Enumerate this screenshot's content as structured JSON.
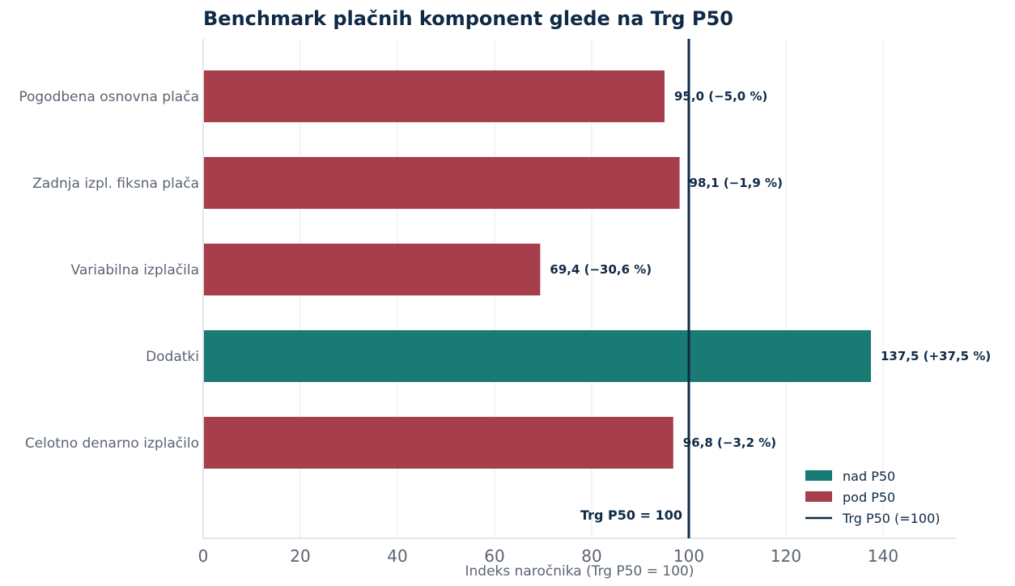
{
  "chart_data": {
    "type": "bar",
    "orientation": "horizontal",
    "title": "Benchmark plačnih komponent glede na Trg P50",
    "xlabel": "Indeks naročnika (Trg P50 = 100)",
    "ylabel": "",
    "xlim": [
      0,
      155
    ],
    "x_ticks": [
      0,
      20,
      40,
      60,
      80,
      100,
      120,
      140
    ],
    "categories": [
      "Pogodbena osnovna plača",
      "Zadnja izpl. fiksna plača",
      "Variabilna izplačila",
      "Dodatki",
      "Celotno denarno izplačilo"
    ],
    "values": [
      95.0,
      98.1,
      69.4,
      137.5,
      96.8
    ],
    "value_labels": [
      "95,0   (−5,0 %)",
      "98,1   (−1,9 %)",
      "69,4   (−30,6 %)",
      "137,5   (+37,5 %)",
      "96,8   (−3,2 %)"
    ],
    "status": [
      "pod",
      "pod",
      "pod",
      "nad",
      "pod"
    ],
    "reference_line": {
      "value": 100,
      "label": "Trg P50 = 100"
    },
    "legend": {
      "placement": "bottom-right",
      "items": [
        {
          "key": "nad",
          "label": "nad P50",
          "kind": "patch"
        },
        {
          "key": "pod",
          "label": "pod P50",
          "kind": "patch"
        },
        {
          "key": "ref",
          "label": "Trg P50 (=100)",
          "kind": "line"
        }
      ]
    },
    "colors": {
      "nad": "#1a7a74",
      "pod": "#a63f4b",
      "ref": "#0f2a47"
    },
    "grid": "x"
  }
}
